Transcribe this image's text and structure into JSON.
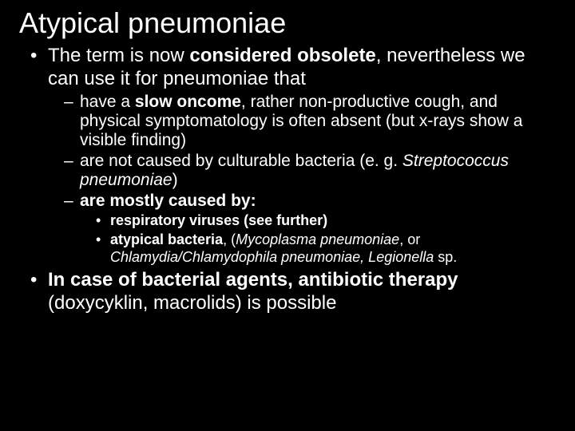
{
  "colors": {
    "background": "#000000",
    "text": "#ffffff",
    "bullet": "#ffffff"
  },
  "typography": {
    "family": "Verdana",
    "title_size_pt": 36,
    "level1_size_pt": 24,
    "level2_size_pt": 21,
    "level3_size_pt": 18
  },
  "title": "Atypical pneumoniae",
  "l1": {
    "i0": {
      "t1": "The term is now ",
      "t2": "considered obsolete",
      "t3": ", nevertheless we can use it for pneumoniae that"
    },
    "i1": {
      "t1": "In case of bacterial agents, antibiotic therapy ",
      "t2": "(doxycyklin, macrolids) is possible"
    }
  },
  "l2": {
    "a": {
      "t1": "have a ",
      "t2": "slow oncome",
      "t3": ", rather non-productive cough, and physical symptomatology is often absent (but x-rays show a visible finding)"
    },
    "b": {
      "t1": "are not caused by culturable bacteria (e. g. ",
      "t2": "Streptococcus pneumoniae",
      "t3": ")"
    },
    "c": {
      "t1": "are mostly caused by:"
    }
  },
  "l3": {
    "a": {
      "t1": "respiratory viruses (see further)"
    },
    "b": {
      "t1": "atypical bacteria",
      "t2": ", (",
      "t3": "Mycoplasma pneumoniae",
      "t4": ", or ",
      "t5": "Chlamydia/Chlamydophila pneumoniae, Legionella ",
      "t6": "sp."
    }
  }
}
